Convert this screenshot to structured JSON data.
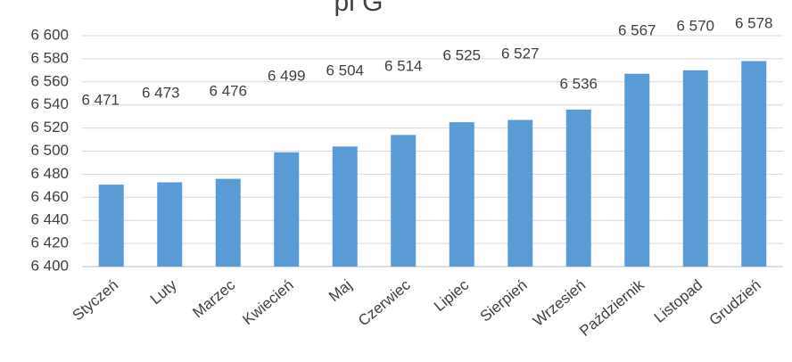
{
  "chart_data": {
    "type": "bar",
    "title": "",
    "title_fragment": "pl G",
    "xlabel": "",
    "ylabel": "",
    "categories": [
      "Styczeń",
      "Luty",
      "Marzec",
      "Kwiecień",
      "Maj",
      "Czerwiec",
      "Lipiec",
      "Sierpień",
      "Wrzesień",
      "Październik",
      "Listopad",
      "Grudzień"
    ],
    "values": [
      6471,
      6473,
      6476,
      6499,
      6504,
      6514,
      6525,
      6527,
      6536,
      6567,
      6570,
      6578
    ],
    "value_labels": [
      "6 471",
      "6 473",
      "6 476",
      "6 499",
      "6 504",
      "6 514",
      "6 525",
      "6 527",
      "6 536",
      "6 567",
      "6 570",
      "6 578"
    ],
    "ylim": [
      6400,
      6600
    ],
    "yticks": [
      6400,
      6420,
      6440,
      6460,
      6480,
      6500,
      6520,
      6540,
      6560,
      6580,
      6600
    ],
    "ytick_labels": [
      "6 400",
      "6 420",
      "6 440",
      "6 460",
      "6 480",
      "6 500",
      "6 520",
      "6 540",
      "6 560",
      "6 580",
      "6 600"
    ],
    "grid": true,
    "legend": "none",
    "colors": {
      "bar": "#5b9bd5",
      "grid": "#d9d9d9",
      "text": "#404040"
    }
  }
}
